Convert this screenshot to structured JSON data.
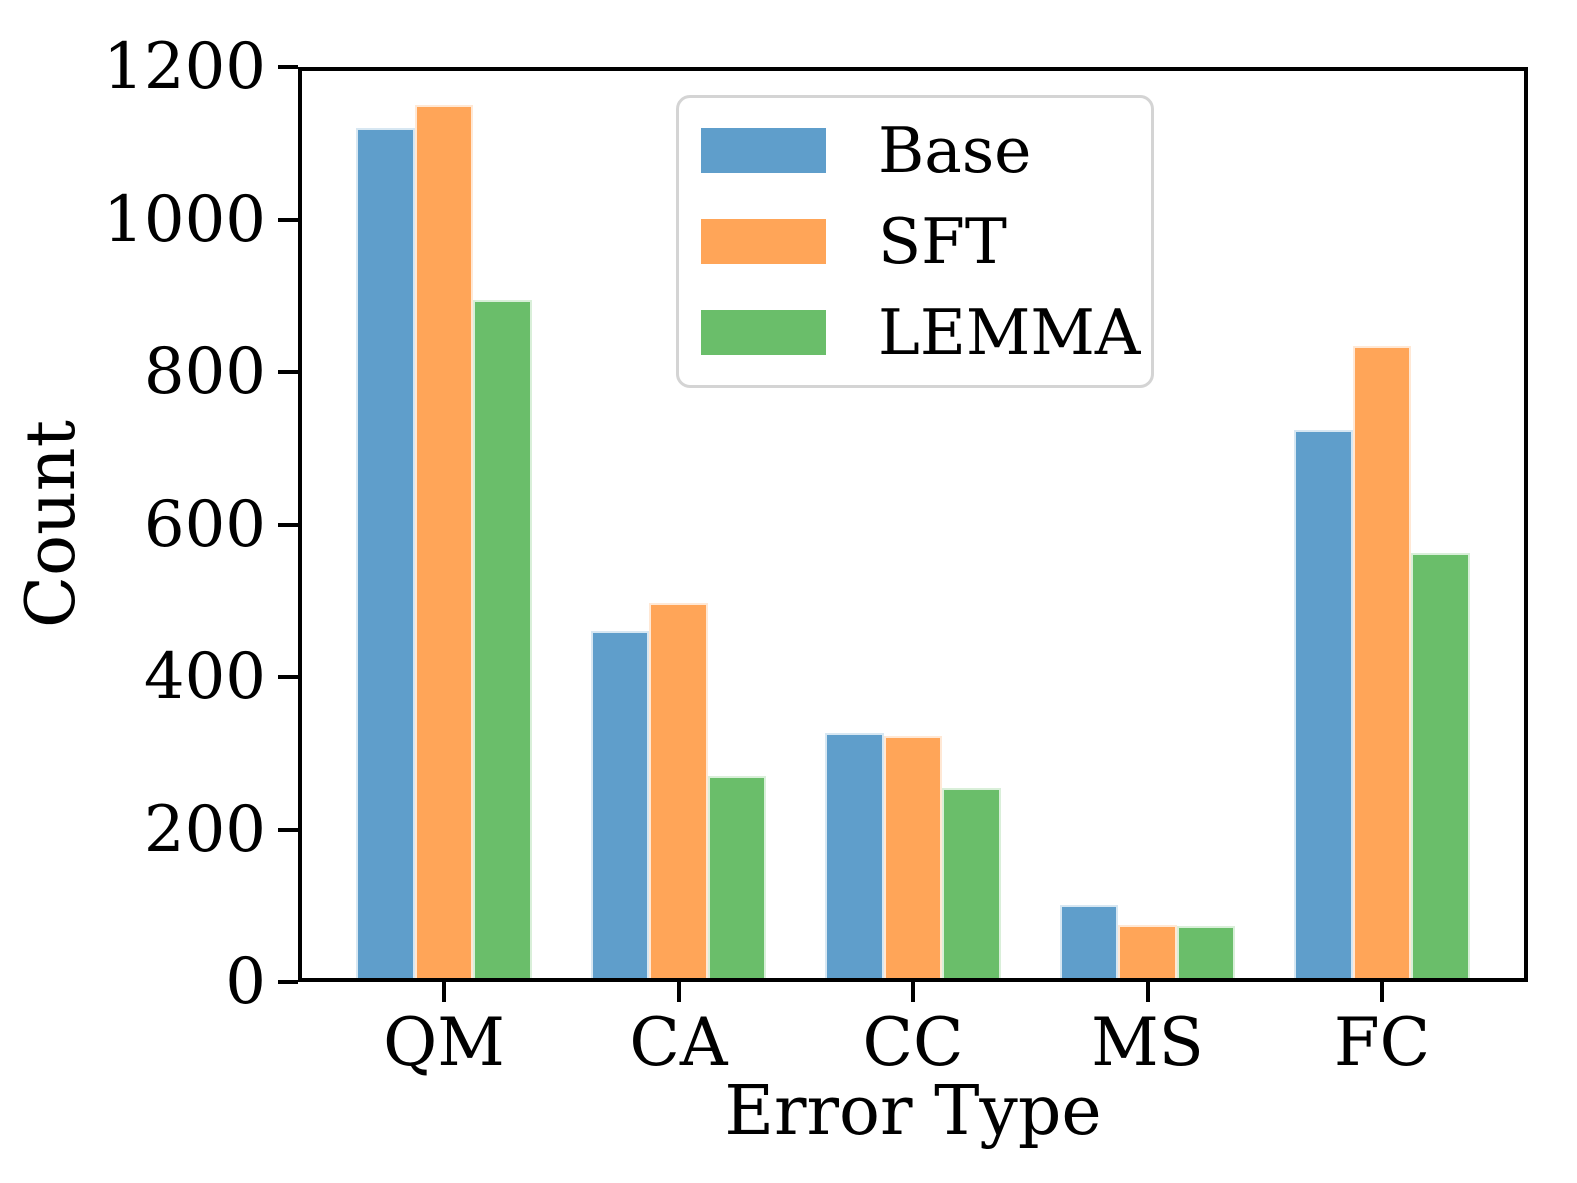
{
  "chart_data": {
    "type": "bar",
    "title": "",
    "xlabel": "Error Type",
    "ylabel": "Count",
    "categories": [
      "QM",
      "CA",
      "CC",
      "MS",
      "FC"
    ],
    "series": [
      {
        "name": "Base",
        "color": "#5F9ECB",
        "values": [
          1120,
          460,
          326,
          101,
          724
        ]
      },
      {
        "name": "SFT",
        "color": "#FFA558",
        "values": [
          1150,
          497,
          322,
          75,
          834
        ]
      },
      {
        "name": "LEMMA",
        "color": "#6ABE6A",
        "values": [
          895,
          270,
          254,
          74,
          562
        ]
      }
    ],
    "ylim": [
      0,
      1200
    ],
    "yticks": [
      0,
      200,
      400,
      600,
      800,
      1000,
      1200
    ],
    "grid": false,
    "legend_position": "upper center",
    "axis_color": "#000000",
    "background_color": "#ffffff"
  }
}
